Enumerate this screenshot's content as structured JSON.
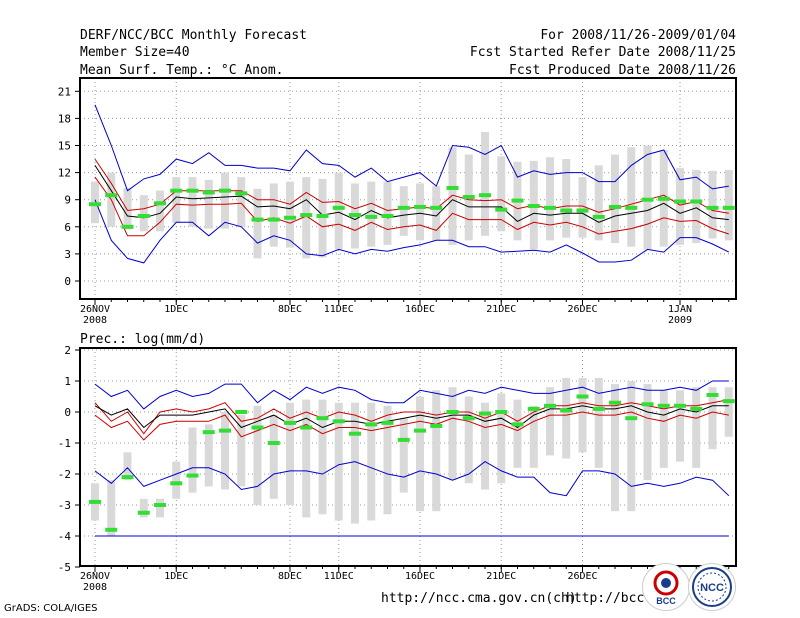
{
  "header": {
    "title": "DERF/NCC/BCC Monthly Forecast",
    "member_size": "Member Size=40",
    "variable": "Mean Surf. Temp.: °C Anom.",
    "period": "For 2008/11/26-2009/01/04",
    "started": "Fcst Started Refer Date 2008/11/25",
    "produced": "Fcst Produced Date 2008/11/26"
  },
  "footer": {
    "url1": "http://ncc.cma.gov.cn(ch)",
    "url2": "http://bcc.c",
    "grads": "GrADS: COLA/IGES",
    "logo1": "BCC",
    "logo2": "NCC"
  },
  "colors": {
    "ensemble_mean": "#000000",
    "spread_bounds": "#cc0000",
    "extremes": "#0000cc",
    "box": "#d9d9d9",
    "observed": "#33dd33"
  },
  "chart_data": [
    {
      "type": "box",
      "title": "",
      "ylabel": "Mean Surf. Temp.: °C Anom.",
      "ylim": [
        -1.5,
        22
      ],
      "yticks": [
        0,
        3,
        6,
        9,
        12,
        15,
        18,
        21
      ],
      "x_tick_labels": [
        {
          "day": 0,
          "label": "26NOV",
          "sub": "2008"
        },
        {
          "day": 5,
          "label": "1DEC"
        },
        {
          "day": 12,
          "label": "8DEC"
        },
        {
          "day": 15,
          "label": "11DEC"
        },
        {
          "day": 20,
          "label": "16DEC"
        },
        {
          "day": 25,
          "label": "21DEC"
        },
        {
          "day": 30,
          "label": "26DEC"
        },
        {
          "day": 36,
          "label": "1JAN",
          "sub": "2009"
        }
      ],
      "series": [
        {
          "name": "max",
          "values": [
            19.5,
            15,
            10,
            11.3,
            11.8,
            13.5,
            13,
            14.2,
            12.8,
            12.8,
            12.5,
            12.5,
            12.2,
            14.5,
            13,
            12.8,
            11.5,
            12.5,
            11,
            11.5,
            12,
            10.5,
            15,
            14.8,
            14,
            15,
            11.5,
            12.2,
            11.8,
            12,
            12,
            11,
            11,
            12.8,
            14,
            14.5,
            11.2,
            11.5,
            10.2,
            10.5
          ]
        },
        {
          "name": "upper",
          "values": [
            13.5,
            10.8,
            7.8,
            8,
            8.5,
            10,
            10,
            10,
            10,
            10,
            9,
            9,
            8.5,
            9.8,
            8.7,
            8.8,
            8,
            8.6,
            7.8,
            8,
            8.2,
            8,
            9.5,
            9,
            8.9,
            9,
            8,
            8.4,
            8,
            8.3,
            8.3,
            7.6,
            8,
            8.5,
            9,
            9.5,
            8.4,
            8.8,
            7.8,
            7.5
          ]
        },
        {
          "name": "mean",
          "values": [
            12.8,
            10,
            7.2,
            7,
            7.5,
            9.3,
            9.1,
            9.2,
            9.3,
            9.4,
            8.2,
            8.3,
            8,
            9,
            7.3,
            7.6,
            6.8,
            7.8,
            7,
            7.3,
            7.5,
            7.2,
            9,
            8.2,
            8.2,
            8.2,
            6.6,
            7.5,
            7.3,
            7.5,
            7.5,
            6.5,
            7.2,
            7.5,
            7.8,
            8.6,
            7.5,
            8.1,
            7,
            6.8
          ]
        },
        {
          "name": "lower",
          "values": [
            11.5,
            9,
            5,
            5,
            6.5,
            8.5,
            8.4,
            8.5,
            8.5,
            8.6,
            6.6,
            7,
            6.4,
            7.2,
            6,
            6.3,
            5.6,
            6.5,
            5.7,
            6,
            6.2,
            5.6,
            7.5,
            6.8,
            6.8,
            6.8,
            5.7,
            6.5,
            6.2,
            6.5,
            6,
            5.2,
            5.5,
            5.8,
            6.3,
            7,
            6.6,
            6.7,
            5.8,
            5.2
          ]
        },
        {
          "name": "min",
          "values": [
            9,
            4.5,
            2.5,
            2,
            4.5,
            6.5,
            6.5,
            5,
            6.5,
            6,
            4.2,
            5,
            4.5,
            3,
            2.8,
            3.5,
            3,
            3.5,
            3.3,
            3.7,
            4,
            4.5,
            4.5,
            3.8,
            3.8,
            3.2,
            3.3,
            3.4,
            3.2,
            4,
            3.1,
            2.1,
            2.1,
            2.3,
            3.5,
            3.2,
            4.8,
            4.8,
            4.1,
            3.2
          ]
        },
        {
          "name": "box_low",
          "values": [
            6.4,
            6,
            5.7,
            5.5,
            5.5,
            6.4,
            6,
            5.8,
            5.8,
            6,
            2.5,
            3.8,
            3.7,
            2.5,
            2.6,
            3.5,
            3.6,
            3.8,
            4,
            5,
            4.5,
            4.5,
            4,
            4.5,
            5,
            5.5,
            4.5,
            3.5,
            4.5,
            4.8,
            4.8,
            4.5,
            4.2,
            3.8,
            3.5,
            3.8,
            4,
            4.2,
            4.7,
            4.5
          ]
        },
        {
          "name": "box_high",
          "values": [
            11,
            12,
            10.3,
            9.5,
            10,
            11.5,
            11.5,
            11.2,
            12,
            11.5,
            10.2,
            10.8,
            11,
            11.5,
            11.3,
            12,
            10.8,
            11,
            11,
            10.5,
            10.8,
            10.5,
            14.8,
            14,
            16.5,
            13.8,
            13.2,
            13.3,
            13.7,
            13.5,
            11.5,
            12.8,
            14,
            14.8,
            15,
            14.5,
            12.5,
            12.3,
            12.2,
            12.3
          ]
        },
        {
          "name": "observed",
          "values": [
            8.5,
            9.5,
            6,
            7.2,
            8.6,
            10,
            10,
            9.8,
            10,
            9.7,
            6.8,
            6.8,
            7,
            7.3,
            7.2,
            8.1,
            7.3,
            7.1,
            7.2,
            8.1,
            8.2,
            8.1,
            10.3,
            9.3,
            9.5,
            7.9,
            8.9,
            8.3,
            8.1,
            7.8,
            7.8,
            7.1,
            8.2,
            8.1,
            9,
            9.1,
            8.8,
            8.8,
            8.1,
            8.1
          ]
        }
      ]
    },
    {
      "type": "box",
      "title": "Prec.: log(mm/d)",
      "ylabel": "Prec.: log(mm/d)",
      "ylim": [
        -5,
        2
      ],
      "yticks": [
        -5,
        -4,
        -3,
        -2,
        -1,
        0,
        1,
        2
      ],
      "x_tick_labels": [
        {
          "day": 0,
          "label": "26NOV",
          "sub": "2008"
        },
        {
          "day": 5,
          "label": "1DEC"
        },
        {
          "day": 12,
          "label": "8DEC"
        },
        {
          "day": 15,
          "label": "11DEC"
        },
        {
          "day": 20,
          "label": "16DEC"
        },
        {
          "day": 25,
          "label": "21DEC"
        },
        {
          "day": 30,
          "label": "26DEC"
        }
      ],
      "series": [
        {
          "name": "max",
          "values": [
            0.9,
            0.5,
            0.7,
            0.1,
            0.5,
            0.7,
            0.5,
            0.6,
            0.9,
            0.9,
            0.3,
            0.7,
            0.4,
            0.8,
            0.6,
            0.8,
            0.7,
            0.4,
            0.3,
            0.3,
            0.7,
            0.6,
            0.5,
            0.7,
            0.6,
            0.8,
            0.7,
            0.6,
            0.6,
            0.7,
            0.8,
            0.6,
            0.7,
            0.8,
            0.7,
            0.7,
            0.8,
            0.7,
            1,
            1
          ]
        },
        {
          "name": "upper",
          "values": [
            0.3,
            -0.3,
            0,
            -0.7,
            0,
            0.1,
            0,
            0.1,
            0.3,
            -0.3,
            -0.2,
            0.1,
            -0.2,
            0,
            -0.2,
            0,
            -0.1,
            -0.3,
            -0.1,
            0,
            0,
            -0.1,
            0,
            0,
            -0.2,
            0,
            -0.3,
            0,
            0.2,
            0.2,
            0.3,
            0.2,
            0.2,
            0.3,
            0.2,
            0.1,
            0.2,
            0.2,
            0.3,
            0.4
          ]
        },
        {
          "name": "mean",
          "values": [
            0.2,
            -0.1,
            0.1,
            -0.5,
            -0.1,
            -0.1,
            -0.1,
            0,
            0.1,
            -0.5,
            -0.3,
            -0.1,
            -0.4,
            -0.2,
            -0.5,
            -0.3,
            -0.3,
            -0.4,
            -0.3,
            -0.2,
            -0.1,
            -0.2,
            -0.1,
            -0.1,
            -0.3,
            -0.2,
            -0.5,
            -0.1,
            0.1,
            0.1,
            0.2,
            0.1,
            0.1,
            0.2,
            0,
            -0.1,
            0.1,
            0,
            0.2,
            0.2
          ]
        },
        {
          "name": "lower",
          "values": [
            -0.1,
            -0.5,
            -0.3,
            -0.9,
            -0.4,
            -0.3,
            -0.3,
            -0.3,
            -0.1,
            -0.8,
            -0.6,
            -0.4,
            -0.6,
            -0.4,
            -0.7,
            -0.5,
            -0.5,
            -0.6,
            -0.5,
            -0.4,
            -0.3,
            -0.4,
            -0.2,
            -0.3,
            -0.5,
            -0.4,
            -0.6,
            -0.3,
            -0.1,
            -0.1,
            0,
            -0.1,
            -0.1,
            0,
            -0.2,
            -0.3,
            -0.1,
            -0.2,
            0,
            -0.1
          ]
        },
        {
          "name": "min",
          "values": [
            -1.9,
            -2.3,
            -1.8,
            -2.4,
            -2.2,
            -2,
            -1.8,
            -1.8,
            -2,
            -2.5,
            -2.4,
            -2,
            -1.9,
            -1.9,
            -2,
            -1.7,
            -1.6,
            -1.8,
            -2,
            -2.1,
            -1.9,
            -2,
            -2.2,
            -2,
            -1.6,
            -1.9,
            -2.1,
            -2.1,
            -2.6,
            -2.7,
            -1.9,
            -1.9,
            -2,
            -2.4,
            -2.3,
            -2.4,
            -2.3,
            -2.1,
            -2.2,
            -2.7
          ]
        },
        {
          "name": "floor",
          "values": [
            -4,
            -4,
            -4,
            -4,
            -4,
            -4,
            -4,
            -4,
            -4,
            -4,
            -4,
            -4,
            -4,
            -4,
            -4,
            -4,
            -4,
            -4,
            -4,
            -4,
            -4,
            -4,
            -4,
            -4,
            -4,
            -4,
            -4,
            -4,
            -4,
            -4,
            -4,
            -4,
            -4,
            -4,
            -4,
            -4,
            -4,
            -4,
            -4,
            -4
          ]
        },
        {
          "name": "box_low",
          "values": [
            -3.5,
            -4,
            -2.2,
            -3.4,
            -3.4,
            -2.8,
            -2.6,
            -2.4,
            -2.5,
            -2.4,
            -3,
            -2.8,
            -3,
            -3.4,
            -3.3,
            -3.5,
            -3.6,
            -3.5,
            -3.3,
            -2.6,
            -3.2,
            -3.2,
            -2.2,
            -2.3,
            -2.5,
            -2.3,
            -1.8,
            -1.8,
            -1.4,
            -1.5,
            -1.3,
            -1.8,
            -3.2,
            -3.2,
            -2.2,
            -1.8,
            -1.6,
            -1.8,
            -1.2,
            -0.8
          ]
        },
        {
          "name": "box_high",
          "values": [
            -2.3,
            -2.2,
            -1.3,
            -2.8,
            -2.8,
            -1.6,
            -0.5,
            -0.4,
            0,
            -0.1,
            0.2,
            -0.1,
            0.3,
            0.4,
            0.4,
            0.3,
            0.3,
            0.3,
            0.2,
            -0.2,
            0.5,
            0.7,
            0.8,
            0.5,
            0.3,
            0.6,
            0.4,
            0.2,
            0.8,
            1.1,
            1.1,
            1.1,
            0.9,
            1,
            0.9,
            0.7,
            0.7,
            0.8,
            0.8,
            0.8
          ]
        },
        {
          "name": "observed",
          "values": [
            -2.9,
            -3.8,
            -2.1,
            -3.25,
            -3,
            -2.3,
            -2.05,
            -0.65,
            -0.6,
            0,
            -0.5,
            -1,
            -0.35,
            -0.5,
            -0.2,
            -0.3,
            -0.7,
            -0.4,
            -0.35,
            -0.9,
            -0.6,
            -0.45,
            0,
            -0.2,
            -0.05,
            0,
            -0.4,
            0.1,
            0.2,
            0.05,
            0.5,
            0.1,
            0.3,
            -0.2,
            0.25,
            0.2,
            0.2,
            0.1,
            0.55,
            0.35
          ]
        }
      ]
    }
  ]
}
